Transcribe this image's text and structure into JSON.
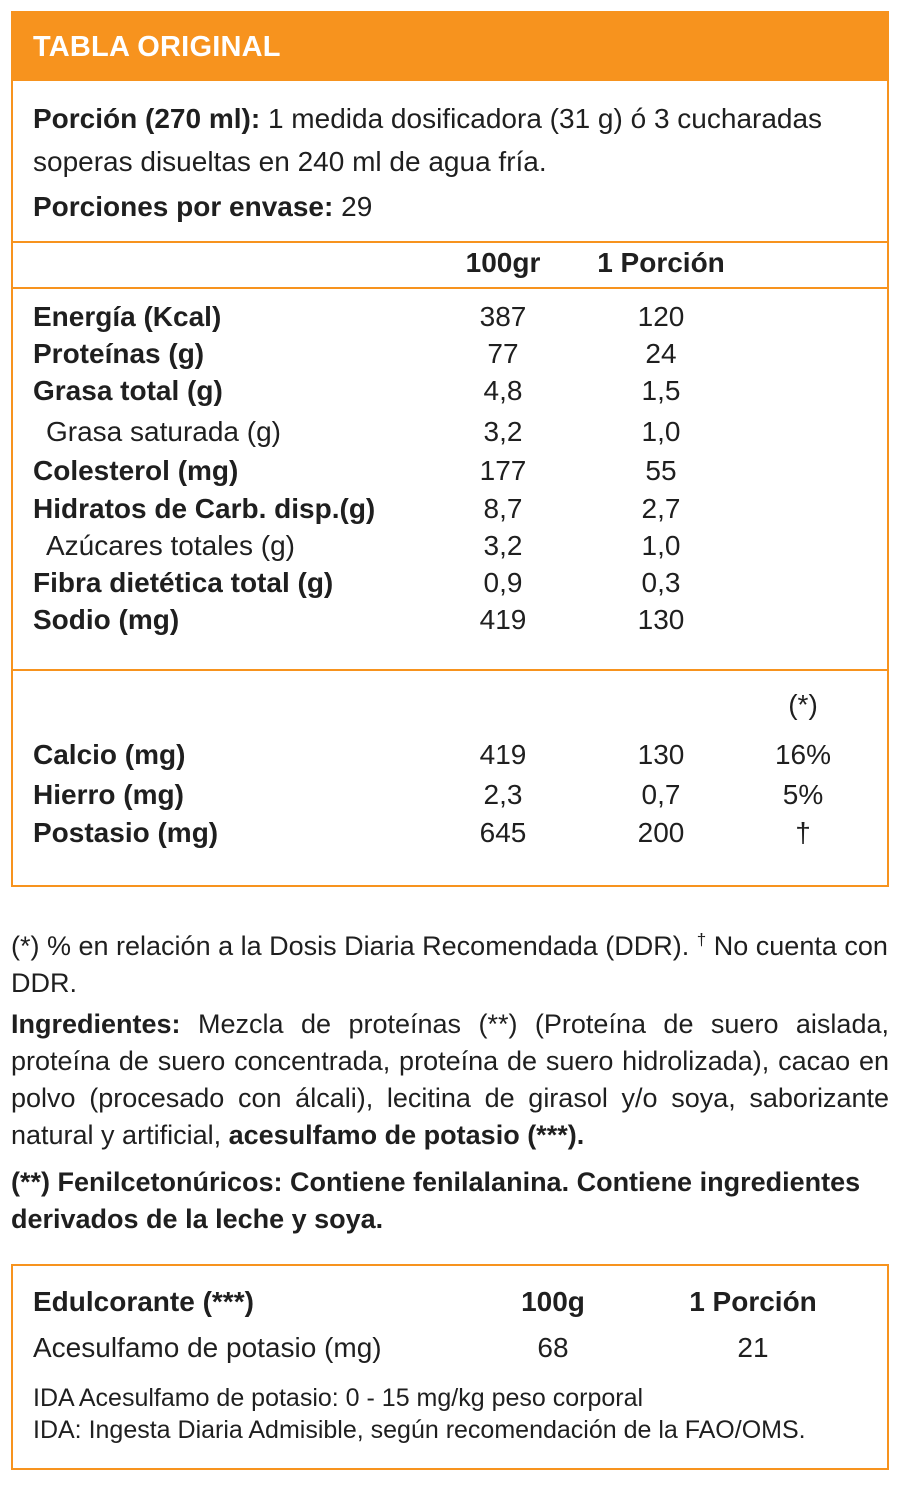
{
  "header": {
    "title": "TABLA ORIGINAL"
  },
  "serving": {
    "label": "Porción (270 ml):",
    "text": "1 medida dosificadora (31 g) ó 3 cucharadas soperas disueltas en 240 ml  de agua fría."
  },
  "servings_per_container": {
    "label": "Porciones por envase:",
    "value": "29"
  },
  "columns": {
    "per100": "100gr",
    "per_serving": "1 Porción"
  },
  "nutrients": [
    {
      "label": "Energía (Kcal)",
      "per100": "387",
      "per_serving": "120"
    },
    {
      "label": "Proteínas (g)",
      "per100": "77",
      "per_serving": "24"
    },
    {
      "label": "Grasa total (g)",
      "per100": "4,8",
      "per_serving": "1,5"
    },
    {
      "label": "Grasa saturada (g)",
      "per100": "3,2",
      "per_serving": "1,0"
    },
    {
      "label": "Colesterol (mg)",
      "per100": "177",
      "per_serving": "55"
    },
    {
      "label": "Hidratos de Carb. disp.(g)",
      "per100": "8,7",
      "per_serving": "2,7"
    },
    {
      "label": "Azúcares totales (g)",
      "per100": "3,2",
      "per_serving": "1,0"
    },
    {
      "label": "Fibra dietética total (g)",
      "per100": "0,9",
      "per_serving": "0,3"
    },
    {
      "label": "Sodio (mg)",
      "per100": "419",
      "per_serving": "130"
    }
  ],
  "ddr_header": "(*)",
  "minerals": [
    {
      "label": "Calcio (mg)",
      "per100": "419",
      "per_serving": "130",
      "ddr": "16%"
    },
    {
      "label": "Hierro (mg)",
      "per100": "2,3",
      "per_serving": "0,7",
      "ddr": "5%"
    },
    {
      "label": "Postasio (mg)",
      "per100": "645",
      "per_serving": "200",
      "ddr": "†"
    }
  ],
  "notes": {
    "ddr_note_a": "(*) % en relación a la Dosis Diaria Recomendada (DDR).",
    "dagger": "†",
    "ddr_note_b": "No cuenta con DDR.",
    "ingredients_label": "Ingredientes:",
    "ingredients_text": "Mezcla de proteínas (**) (Proteína de suero aislada, proteína de suero concentrada, proteína de suero hidrolizada), cacao en polvo (procesado con álcali), lecitina de girasol y/o soya, saborizante natural y artificial,",
    "ingredients_bold_tail": "acesulfamo de potasio (***).",
    "pku_warning": "(**) Fenilcetonúricos: Contiene fenilalanina. Contiene ingredientes derivados de la leche y soya."
  },
  "sweetener": {
    "header_label": "Edulcorante (***)",
    "col_per100": "100g",
    "col_per_serving": "1 Porción",
    "row_label": "Acesulfamo de potasio (mg)",
    "row_per100": "68",
    "row_per_serving": "21",
    "ida_line1": "IDA Acesulfamo de potasio: 0 - 15 mg/kg peso corporal",
    "ida_line2": "IDA: Ingesta Diaria Admisible, según recomendación de la FAO/OMS."
  },
  "colors": {
    "accent": "#f7931e",
    "text": "#1f1f1f"
  }
}
